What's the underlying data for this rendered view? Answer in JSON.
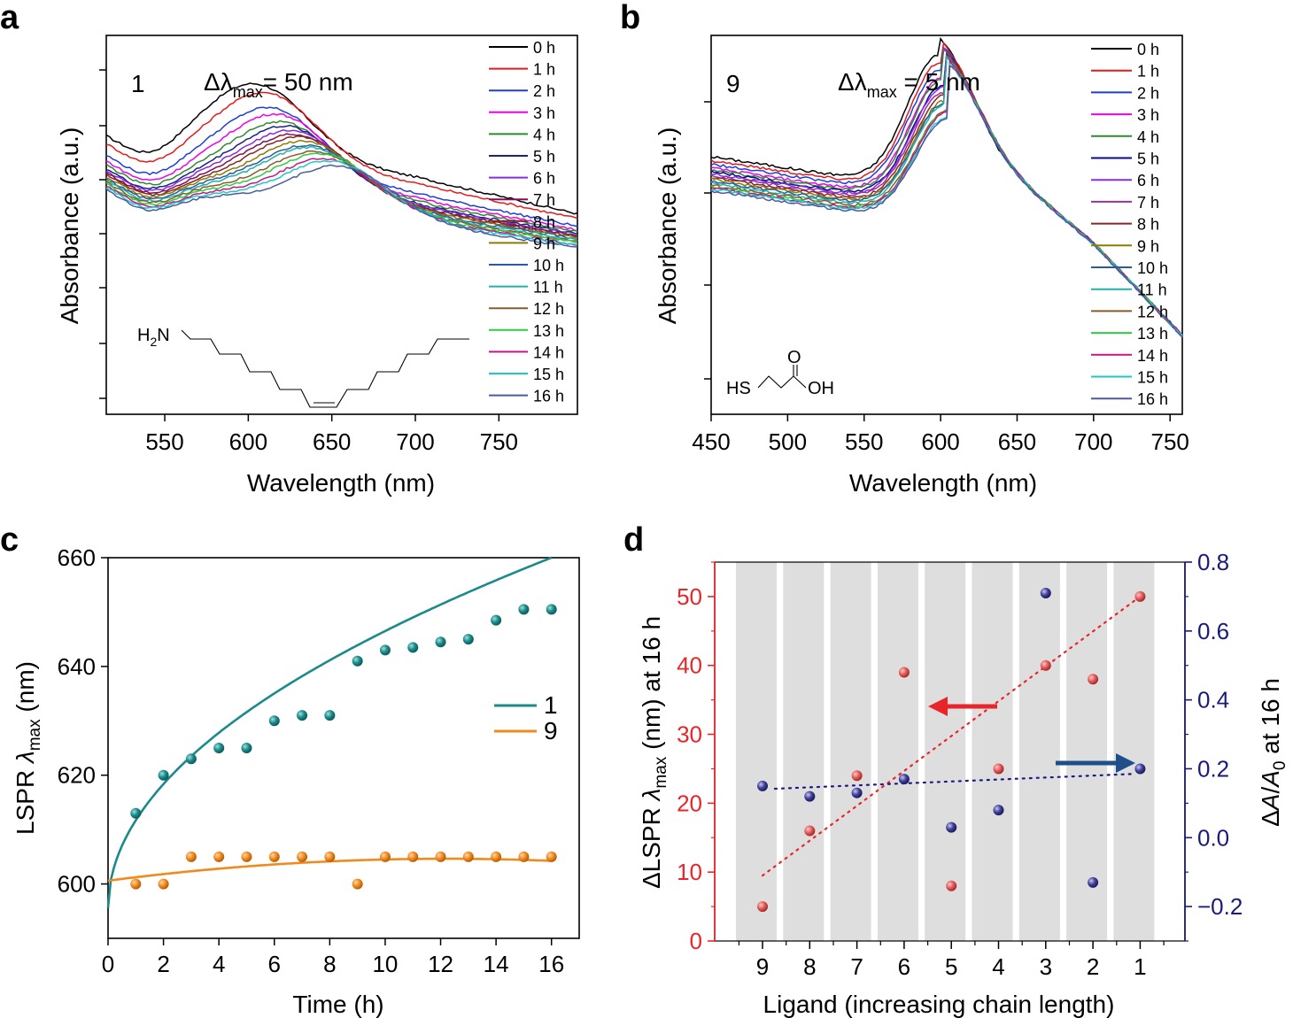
{
  "chart_data": [
    {
      "panel": "a",
      "type": "line",
      "xlabel": "Wavelength (nm)",
      "ylabel": "Absorbance (a.u.)",
      "xlim": [
        515,
        797
      ],
      "ylim": [
        0,
        1
      ],
      "xticks": [
        550,
        600,
        650,
        700,
        750
      ],
      "sample_label": "1",
      "annotation": {
        "prefix": "Δλ",
        "sub": "max",
        "suffix": "= 50 nm"
      },
      "molecule": {
        "amine_label": "H",
        "amine_sub": "2",
        "amine_n": "N"
      },
      "legend": [
        "0 h",
        "1 h",
        "2 h",
        "3 h",
        "4 h",
        "5 h",
        "6 h",
        "7 h",
        "8 h",
        "9 h",
        "10 h",
        "11 h",
        "12 h",
        "13 h",
        "14 h",
        "15 h",
        "16 h"
      ],
      "colors": [
        "#000000",
        "#e41a1c",
        "#1f3fd4",
        "#ee00ee",
        "#2f8a2f",
        "#1a237e",
        "#8a2be2",
        "#7b1450",
        "#8b2323",
        "#8b7d00",
        "#2c5aa0",
        "#20b2aa",
        "#8b5a2b",
        "#2ecc40",
        "#c71585",
        "#1ec8c8",
        "#4b5aa0"
      ],
      "peak_x": [
        606,
        612,
        615,
        619,
        622,
        625,
        628,
        630,
        633,
        636,
        638,
        640,
        643,
        646,
        649,
        652,
        656
      ],
      "series_params": [
        {
          "b": 0.755,
          "A": 0.18,
          "s": 0.55
        },
        {
          "b": 0.735,
          "A": 0.18,
          "s": 0.52
        },
        {
          "b": 0.705,
          "A": 0.17,
          "s": 0.48
        },
        {
          "b": 0.69,
          "A": 0.17,
          "s": 0.46
        },
        {
          "b": 0.68,
          "A": 0.16,
          "s": 0.44
        },
        {
          "b": 0.67,
          "A": 0.16,
          "s": 0.42
        },
        {
          "b": 0.665,
          "A": 0.155,
          "s": 0.41
        },
        {
          "b": 0.66,
          "A": 0.15,
          "s": 0.4
        },
        {
          "b": 0.655,
          "A": 0.15,
          "s": 0.39
        },
        {
          "b": 0.65,
          "A": 0.145,
          "s": 0.38
        },
        {
          "b": 0.645,
          "A": 0.14,
          "s": 0.37
        },
        {
          "b": 0.64,
          "A": 0.14,
          "s": 0.36
        },
        {
          "b": 0.635,
          "A": 0.135,
          "s": 0.36
        },
        {
          "b": 0.63,
          "A": 0.135,
          "s": 0.35
        },
        {
          "b": 0.625,
          "A": 0.13,
          "s": 0.35
        },
        {
          "b": 0.62,
          "A": 0.13,
          "s": 0.34
        },
        {
          "b": 0.615,
          "A": 0.125,
          "s": 0.34
        }
      ]
    },
    {
      "panel": "b",
      "type": "line",
      "xlabel": "Wavelength (nm)",
      "ylabel": "Absorbance (a.u.)",
      "xlim": [
        450,
        758
      ],
      "ylim": [
        0,
        1
      ],
      "xticks": [
        450,
        500,
        550,
        600,
        650,
        700,
        750
      ],
      "sample_label": "9",
      "annotation": {
        "prefix": "Δλ",
        "sub": "max",
        "suffix": " = 5 nm"
      },
      "molecule": {
        "hs": "HS",
        "o": "O",
        "oh": "OH"
      },
      "legend": [
        "0 h",
        "1 h",
        "2 h",
        "3 h",
        "4 h",
        "5 h",
        "6 h",
        "7 h",
        "8 h",
        "9 h",
        "10 h",
        "11 h",
        "12 h",
        "13 h",
        "14 h",
        "15 h",
        "16 h"
      ],
      "colors": [
        "#000000",
        "#e41a1c",
        "#1f3fd4",
        "#ee00ee",
        "#2f8a2f",
        "#0a0a8a",
        "#8a2be2",
        "#9b30a0",
        "#8b2323",
        "#8b7d00",
        "#2c5aa0",
        "#20b2aa",
        "#8b5a2b",
        "#2ecc40",
        "#c71585",
        "#1ec8c8",
        "#4b5aa0"
      ],
      "peak_x": [
        600,
        601,
        601,
        602,
        602,
        603,
        603,
        603,
        604,
        604,
        604,
        604,
        605,
        605,
        605,
        605,
        605
      ],
      "series_params": [
        {
          "b": 0.68,
          "A": 0.36
        },
        {
          "b": 0.67,
          "A": 0.35
        },
        {
          "b": 0.66,
          "A": 0.34
        },
        {
          "b": 0.65,
          "A": 0.33
        },
        {
          "b": 0.645,
          "A": 0.33
        },
        {
          "b": 0.64,
          "A": 0.32
        },
        {
          "b": 0.635,
          "A": 0.32
        },
        {
          "b": 0.63,
          "A": 0.31
        },
        {
          "b": 0.625,
          "A": 0.31
        },
        {
          "b": 0.62,
          "A": 0.3
        },
        {
          "b": 0.615,
          "A": 0.3
        },
        {
          "b": 0.61,
          "A": 0.3
        },
        {
          "b": 0.605,
          "A": 0.29
        },
        {
          "b": 0.6,
          "A": 0.29
        },
        {
          "b": 0.598,
          "A": 0.29
        },
        {
          "b": 0.595,
          "A": 0.28
        },
        {
          "b": 0.59,
          "A": 0.28
        }
      ]
    },
    {
      "panel": "c",
      "type": "scatter",
      "xlabel": "Time (h)",
      "ylabel": {
        "prefix": "LSPR ",
        "lambda": "λ",
        "sub": "max",
        "suffix": " (nm)"
      },
      "xlim": [
        0,
        17
      ],
      "ylim": [
        590,
        660
      ],
      "xticks": [
        0,
        2,
        4,
        6,
        8,
        10,
        12,
        14,
        16
      ],
      "yticks": [
        600,
        620,
        640,
        660
      ],
      "series": [
        {
          "name": "1",
          "color": "#1a8a8a",
          "x": [
            1,
            2,
            3,
            4,
            5,
            6,
            7,
            8,
            9,
            10,
            11,
            12,
            13,
            14,
            15,
            16
          ],
          "values": [
            613,
            620,
            623,
            625,
            625,
            630,
            631,
            631,
            641,
            643,
            643.5,
            644.5,
            645,
            648.5,
            650.5,
            650.5
          ],
          "fit": {
            "type": "power",
            "a": 595.6,
            "b": 16.1,
            "c": 0.5
          }
        },
        {
          "name": "9",
          "color": "#f08a1e",
          "x": [
            1,
            2,
            3,
            4,
            5,
            6,
            7,
            8,
            9,
            10,
            11,
            12,
            13,
            14,
            15,
            16
          ],
          "values": [
            600,
            600,
            605,
            605,
            605,
            605,
            605,
            605,
            600,
            605,
            605,
            605,
            605,
            605,
            605,
            605
          ],
          "fit": {
            "type": "quad",
            "a": 600.6,
            "b": 0.66,
            "c": -0.027
          }
        }
      ]
    },
    {
      "panel": "d",
      "type": "scatter",
      "xlabel": "Ligand (increasing chain length)",
      "ylabel_left": {
        "prefix": "ΔLSPR ",
        "lambda": "λ",
        "sub": "max",
        "suffix": " (nm) at 16 h"
      },
      "ylabel_right": {
        "prefix": "Δ",
        "A": "A",
        "slash": "/",
        "A0": "A",
        "sub": "0",
        "suffix": " at 16 h"
      },
      "categories": [
        "9",
        "8",
        "7",
        "6",
        "5",
        "4",
        "3",
        "2",
        "1"
      ],
      "ylim_left": [
        0,
        55
      ],
      "ylim_right": [
        -0.3,
        0.8
      ],
      "yticks_left": [
        0,
        10,
        20,
        30,
        40,
        50
      ],
      "yticks_right": [
        "−0.2",
        "0.0",
        "0.2",
        "0.4",
        "0.6",
        "0.8"
      ],
      "yticks_right_values": [
        -0.2,
        0.0,
        0.2,
        0.4,
        0.6,
        0.8
      ],
      "left_color": "#e8262a",
      "right_color": "#1a1a7a",
      "series": [
        {
          "name": "ΔLSPR λmax",
          "axis": "left",
          "color": "#e35a5a",
          "values": [
            5,
            16,
            24,
            39,
            8,
            25,
            40,
            38,
            50
          ],
          "trend": [
            9.5,
            50
          ]
        },
        {
          "name": "ΔA/A0",
          "axis": "right",
          "color": "#3f3f9a",
          "values": [
            0.15,
            0.12,
            0.13,
            0.17,
            0.03,
            0.08,
            0.71,
            -0.13,
            0.2
          ],
          "trend": [
            0.142,
            0.185
          ]
        }
      ]
    }
  ]
}
